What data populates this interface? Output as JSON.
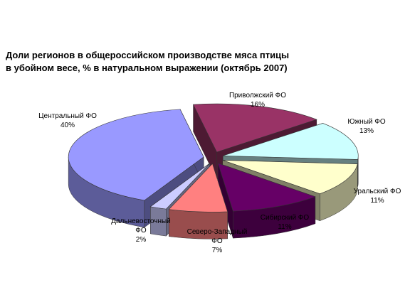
{
  "chart_data": {
    "type": "pie",
    "title": [
      "Доли регионов в общероссийском производстве мяса птицы",
      "в убойном весе, % в натуральном выражении (октябрь 2007)"
    ],
    "categories": [
      "Приволжский ФО",
      "Южный ФО",
      "Уральский ФО",
      "Сибирский ФО",
      "Северо-Западный ФО",
      "Дальневосточный ФО",
      "Центральный ФО"
    ],
    "values": [
      16,
      13,
      11,
      11,
      7,
      2,
      40
    ],
    "value_labels": [
      "16%",
      "13%",
      "11%",
      "11%",
      "7%",
      "2%",
      "40%"
    ],
    "colors": [
      "#993366",
      "#ccffff",
      "#ffffcc",
      "#660066",
      "#ff8080",
      "#ccccff",
      "#9999ff"
    ]
  }
}
